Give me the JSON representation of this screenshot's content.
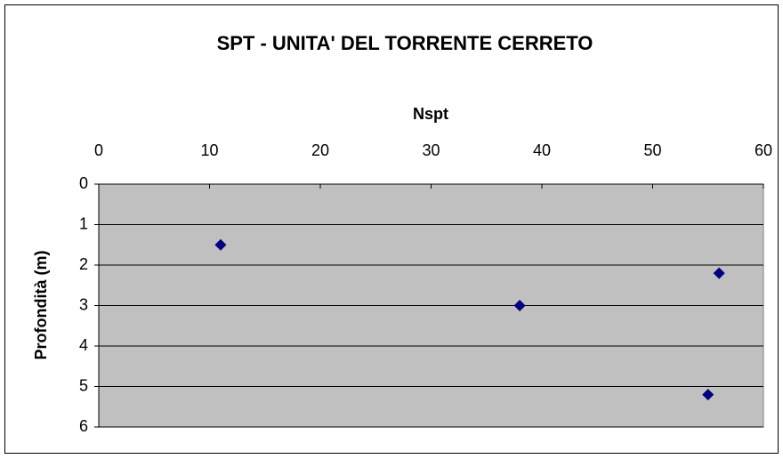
{
  "chart_data": {
    "type": "scatter",
    "title": "SPT - UNITA' DEL TORRENTE CERRETO",
    "x_label": "Nspt",
    "y_label": "Profondità (m)",
    "series": [
      {
        "color": "#000080",
        "x": [
          11,
          38,
          56,
          55
        ],
        "values": [
          1.5,
          3,
          2.2,
          5.2
        ]
      }
    ],
    "xlim": [
      0,
      60
    ],
    "xticks": [
      0,
      10,
      20,
      30,
      40,
      50,
      60
    ],
    "ylim": [
      0,
      6
    ],
    "yticks": [
      0,
      1,
      2,
      3,
      4,
      5,
      6
    ],
    "y_inverted": true,
    "x_axis_position": "top",
    "grid": true,
    "plot_background": "#c0c0c0"
  }
}
